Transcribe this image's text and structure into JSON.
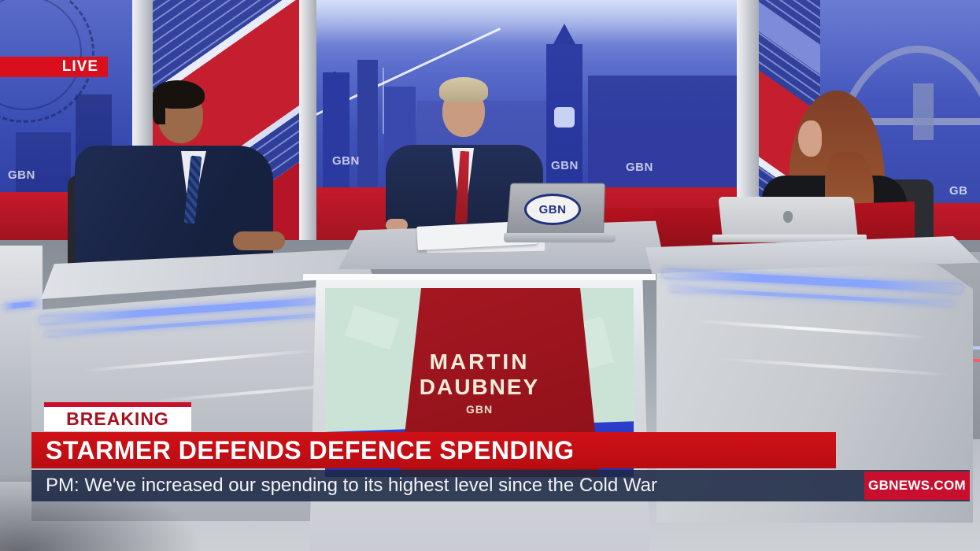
{
  "live_badge": {
    "label": "LIVE"
  },
  "breaking_tag": {
    "label": "BREAKING"
  },
  "headline_bar": {
    "text": "STARMER DEFENDS DEFENCE SPENDING"
  },
  "ticker_bar": {
    "text": "PM: We've increased our spending to its highest level since the Cold War"
  },
  "channel_tag": {
    "label": "GBNEWS.COM"
  },
  "desk_sign": {
    "first_name": "MARTIN",
    "last_name": "DAUBNEY",
    "logo": "GBN"
  },
  "branding": {
    "logo": "GBN",
    "logo_short": "GB"
  },
  "colors": {
    "brand_red": "#C8102E",
    "headline_red": "#C00D14",
    "breaking_text_red": "#A8101F",
    "ticker_navy": "#1E2946",
    "wall_blue": "#3A4DB4",
    "desk_grey": "#C6CACF",
    "led_blue": "#7E9BFF",
    "sign_green": "#CBE3D6",
    "sign_blue": "#2533B8",
    "sign_red": "#A01620"
  }
}
